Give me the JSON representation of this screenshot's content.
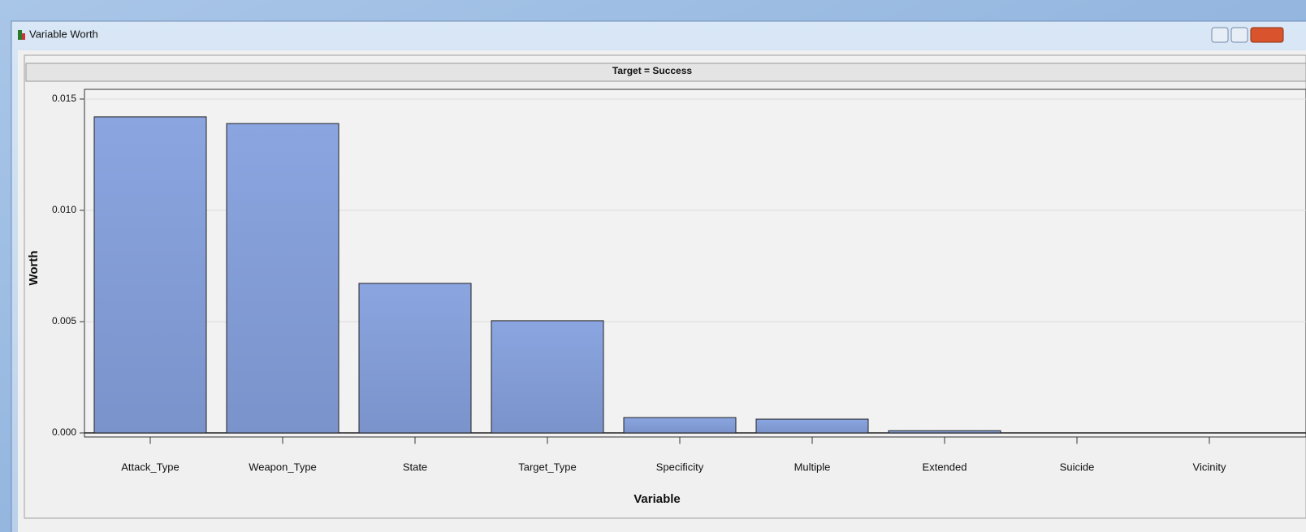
{
  "window": {
    "title": "Variable Worth"
  },
  "chart_data": {
    "type": "bar",
    "title": "Target = Success",
    "x_label": "Variable",
    "y_label": "Worth",
    "categories": [
      "Attack_Type",
      "Weapon_Type",
      "State",
      "Target_Type",
      "Specificity",
      "Multiple",
      "Extended",
      "Suicide",
      "Vicinity"
    ],
    "values": [
      0.0142,
      0.0139,
      0.00672,
      0.00504,
      0.00069,
      0.00062,
      0.0001,
      0,
      0
    ],
    "color": "#8aa5e0",
    "ylim": [
      -0.0002,
      0.0154
    ],
    "yticks": [
      {
        "value": 0,
        "label": "0.000"
      },
      {
        "value": 0.005,
        "label": "0.005"
      },
      {
        "value": 0.01,
        "label": "0.010"
      },
      {
        "value": 0.015,
        "label": "0.015"
      }
    ],
    "grid": true
  }
}
